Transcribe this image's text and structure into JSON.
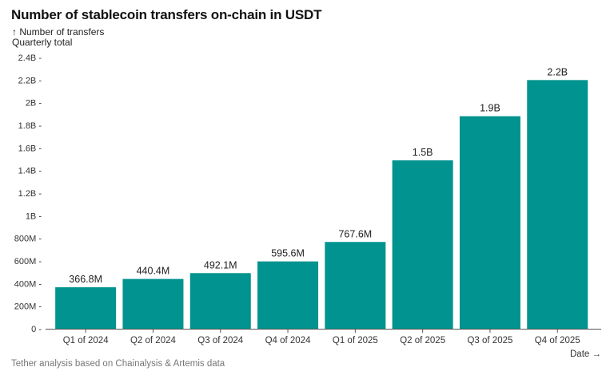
{
  "chart_data": {
    "type": "bar",
    "title": "Number of stablecoin transfers on-chain in USDT",
    "ylabel": "↑ Number of transfers",
    "subtitle": "Quarterly total",
    "xlabel": "Date →",
    "source": "Tether analysis based on Chainalysis & Artemis data",
    "categories": [
      "Q1 of 2024",
      "Q2 of 2024",
      "Q3 of 2024",
      "Q4 of 2024",
      "Q1 of 2025",
      "Q2 of 2025",
      "Q3 of 2025",
      "Q4 of 2025"
    ],
    "values": [
      366800000,
      440400000,
      492100000,
      595600000,
      767600000,
      1490000000,
      1880000000,
      2200000000
    ],
    "data_labels": [
      "366.8M",
      "440.4M",
      "492.1M",
      "595.6M",
      "767.6M",
      "1.5B",
      "1.9B",
      "2.2B"
    ],
    "yticks": [
      0,
      200000000,
      400000000,
      600000000,
      800000000,
      1000000000,
      1200000000,
      1400000000,
      1600000000,
      1800000000,
      2000000000,
      2200000000,
      2400000000
    ],
    "ytick_labels": [
      "0",
      "200M",
      "400M",
      "600M",
      "800M",
      "1B",
      "1.2B",
      "1.4B",
      "1.6B",
      "1.8B",
      "2B",
      "2.2B",
      "2.4B"
    ],
    "ylim": [
      0,
      2400000000
    ],
    "grid": false,
    "bar_color": "#00938f"
  }
}
